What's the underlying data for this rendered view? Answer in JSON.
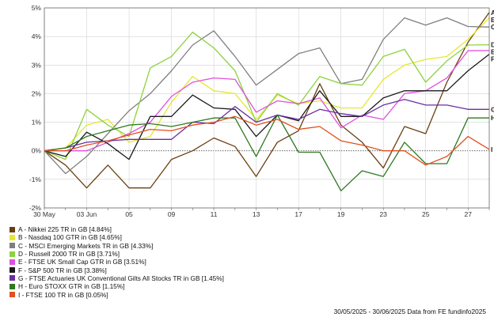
{
  "chart_data": {
    "type": "line",
    "title": "",
    "xlabel": "",
    "ylabel": "",
    "y_unit": "%",
    "ylim": [
      -2,
      5
    ],
    "yticks": [
      -2,
      -1,
      0,
      1,
      2,
      3,
      4,
      5
    ],
    "ytick_labels": [
      "-2%",
      "-1%",
      "0%",
      "1%",
      "2%",
      "3%",
      "4%",
      "5%"
    ],
    "x": [
      "30 May",
      "02 Jun",
      "03 Jun",
      "04 Jun",
      "05 Jun",
      "06 Jun",
      "09 Jun",
      "10 Jun",
      "11 Jun",
      "12 Jun",
      "13 Jun",
      "16 Jun",
      "17 Jun",
      "18 Jun",
      "19 Jun",
      "20 Jun",
      "23 Jun",
      "24 Jun",
      "25 Jun",
      "26 Jun",
      "27 Jun",
      "30 Jun"
    ],
    "x_tick_labels": [
      "30 May",
      "03 Jun",
      "05",
      "09",
      "11",
      "13",
      "17",
      "19",
      "23",
      "25",
      "27"
    ],
    "grid": true,
    "legend": "bottom-left",
    "series": [
      {
        "id": "A",
        "name": "A - Nikkei 225 TR in GB [4.84%]",
        "color": "#6b3f10",
        "values": [
          0,
          -0.5,
          -1.3,
          -0.5,
          -1.3,
          -1.3,
          -0.3,
          0.0,
          0.45,
          0.15,
          -0.9,
          0.3,
          0.7,
          2.35,
          0.9,
          0.3,
          -0.6,
          0.85,
          0.6,
          2.4,
          3.8,
          4.84
        ]
      },
      {
        "id": "B",
        "name": "B - Nasdaq 100 GTR in GB [4.65%]",
        "color": "#e6e632",
        "values": [
          0,
          0.1,
          0.9,
          1.1,
          0.3,
          0.5,
          1.7,
          2.6,
          2.1,
          2.0,
          1.1,
          1.95,
          1.65,
          1.75,
          1.5,
          1.5,
          2.5,
          3.0,
          3.2,
          3.3,
          3.9,
          4.65
        ]
      },
      {
        "id": "C",
        "name": "C - MSCI Emerging Markets TR in GB [4.33%]",
        "color": "#7f7f7f",
        "values": [
          0,
          -0.8,
          -0.2,
          0.6,
          1.4,
          2.0,
          2.8,
          3.7,
          4.2,
          3.3,
          2.3,
          2.85,
          3.4,
          3.6,
          2.35,
          2.5,
          3.9,
          4.65,
          4.4,
          4.65,
          4.35,
          4.33
        ]
      },
      {
        "id": "D",
        "name": "D - Russell 2000 TR in GB [3.71%]",
        "color": "#8cd23c",
        "values": [
          0,
          -0.3,
          1.45,
          0.9,
          0.5,
          2.9,
          3.3,
          4.15,
          3.6,
          2.8,
          1.0,
          2.0,
          1.6,
          2.6,
          2.35,
          2.3,
          3.3,
          3.55,
          2.4,
          3.15,
          3.7,
          3.71
        ]
      },
      {
        "id": "E",
        "name": "E - FTSE UK Small Cap GTR in GB [3.51%]",
        "color": "#e050e0",
        "values": [
          0,
          0.0,
          0.0,
          0.3,
          0.6,
          1.0,
          1.9,
          2.4,
          2.55,
          2.5,
          1.35,
          1.75,
          1.65,
          1.85,
          0.8,
          1.25,
          1.1,
          2.0,
          2.1,
          2.55,
          3.5,
          3.51
        ]
      },
      {
        "id": "F",
        "name": "F - S&P 500 TR in GB [3.38%]",
        "color": "#1a1a1a",
        "values": [
          0,
          -0.2,
          0.65,
          0.25,
          -0.3,
          1.2,
          1.2,
          1.95,
          1.5,
          1.45,
          0.5,
          1.25,
          1.05,
          2.1,
          1.2,
          1.2,
          1.85,
          2.1,
          2.1,
          2.1,
          2.8,
          3.38
        ]
      },
      {
        "id": "G",
        "name": "G - FTSE Actuaries UK Conventional Gilts All Stocks TR in GB [1.45%]",
        "color": "#6a2fa0",
        "values": [
          0,
          0.1,
          0.3,
          0.35,
          0.4,
          0.4,
          0.4,
          1.0,
          0.95,
          1.55,
          1.0,
          1.25,
          1.1,
          1.45,
          1.3,
          1.2,
          1.6,
          1.8,
          1.6,
          1.6,
          1.45,
          1.45
        ]
      },
      {
        "id": "H",
        "name": "H - Euro STOXX GTR in GB [1.15%]",
        "color": "#2e7a1f",
        "values": [
          0,
          0.1,
          0.5,
          0.7,
          0.9,
          0.95,
          0.85,
          1.0,
          1.15,
          1.15,
          -0.2,
          1.25,
          -0.05,
          -0.05,
          -1.4,
          -0.7,
          -0.9,
          0.3,
          -0.45,
          -0.45,
          1.15,
          1.15
        ]
      },
      {
        "id": "I",
        "name": "I - FTSE 100 TR in GB [0.05%]",
        "color": "#e05020",
        "values": [
          0,
          0.0,
          0.2,
          0.35,
          0.55,
          0.75,
          0.7,
          0.9,
          1.0,
          1.2,
          0.9,
          1.1,
          0.75,
          0.85,
          0.35,
          0.2,
          0.0,
          0.0,
          -0.5,
          -0.2,
          0.5,
          0.05
        ]
      }
    ]
  },
  "footer": {
    "text": "30/05/2025 - 30/06/2025 Data from FE fundinfo2025"
  }
}
